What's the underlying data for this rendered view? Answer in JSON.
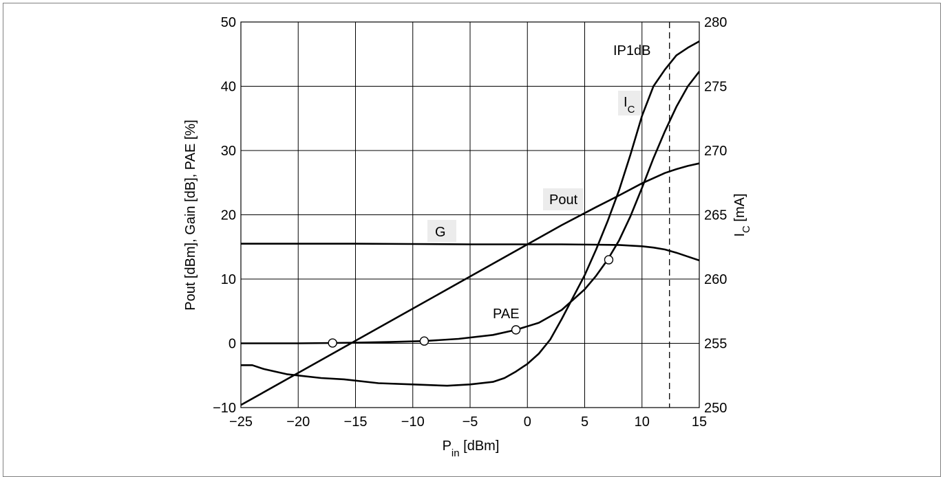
{
  "chart_data": {
    "type": "line",
    "xlabel": {
      "main": "P",
      "sub": "in",
      "unit": " [dBm]"
    },
    "ylabel_left": "Pout [dBm], Gain [dB], PAE [%]",
    "ylabel_right": {
      "main": "I",
      "sub": "C",
      "unit": " [mA]"
    },
    "xlim": [
      -25,
      15
    ],
    "ylim_left": [
      -10,
      50
    ],
    "ylim_right": [
      250,
      280
    ],
    "grid": true,
    "xticks": [
      -25,
      -20,
      -15,
      -10,
      -5,
      0,
      5,
      10,
      15
    ],
    "yticks_left": [
      -10,
      0,
      10,
      20,
      30,
      40,
      50
    ],
    "yticks_right": [
      250,
      255,
      260,
      265,
      270,
      275,
      280
    ],
    "xtick_labels": [
      "−25",
      "−20",
      "−15",
      "−10",
      "−5",
      "0",
      "5",
      "10",
      "15"
    ],
    "ytick_left_labels": [
      "−10",
      "0",
      "10",
      "20",
      "30",
      "40",
      "50"
    ],
    "ytick_right_labels": [
      "250",
      "255",
      "260",
      "265",
      "270",
      "275",
      "280"
    ],
    "series": [
      {
        "key": "pout",
        "axis": "left",
        "x": [
          -25,
          -20,
          -15,
          -10,
          -5,
          0,
          3,
          6,
          8,
          10,
          12,
          13,
          14,
          15
        ],
        "y": [
          -9.6,
          -4.6,
          0.4,
          5.4,
          10.4,
          15.4,
          18.4,
          21.2,
          23.0,
          24.9,
          26.5,
          27.1,
          27.6,
          28.0
        ]
      },
      {
        "key": "gain",
        "axis": "left",
        "x": [
          -25,
          -20,
          -15,
          -10,
          -5,
          0,
          3,
          6,
          8,
          10,
          11,
          12,
          13,
          14,
          15
        ],
        "y": [
          15.5,
          15.5,
          15.5,
          15.45,
          15.4,
          15.4,
          15.4,
          15.35,
          15.3,
          15.1,
          14.9,
          14.6,
          14.1,
          13.5,
          12.9
        ]
      },
      {
        "key": "pae",
        "axis": "left",
        "x": [
          -25,
          -20,
          -17,
          -15,
          -12,
          -9,
          -6,
          -3,
          -1,
          1,
          3,
          5,
          6,
          7,
          8,
          9,
          10,
          11,
          12,
          13,
          14,
          15
        ],
        "y": [
          0,
          0,
          0.05,
          0.1,
          0.2,
          0.35,
          0.7,
          1.3,
          2.1,
          3.2,
          5.2,
          8.4,
          10.5,
          13.0,
          16.0,
          19.8,
          24.2,
          28.8,
          33.0,
          36.8,
          40.0,
          42.3
        ]
      },
      {
        "key": "ic",
        "axis": "right",
        "x": [
          -25,
          -24,
          -23,
          -22,
          -21,
          -20,
          -18,
          -16,
          -13,
          -10,
          -7,
          -5,
          -3,
          -2,
          -1,
          0,
          1,
          2,
          3,
          4,
          5,
          6,
          7,
          8,
          9,
          10,
          11,
          12,
          13,
          14,
          15
        ],
        "y": [
          253.3,
          253.3,
          253.0,
          252.8,
          252.6,
          252.5,
          252.3,
          252.2,
          251.9,
          251.8,
          251.7,
          251.8,
          252.0,
          252.3,
          252.8,
          253.4,
          254.2,
          255.3,
          256.9,
          258.6,
          260.3,
          262.3,
          264.5,
          266.9,
          269.7,
          272.7,
          275.0,
          276.3,
          277.4,
          278.0,
          278.5
        ]
      }
    ],
    "markers_pae": {
      "x": [
        -17,
        -9,
        -1,
        7.1
      ],
      "y": [
        0.05,
        0.35,
        2.1,
        13.0
      ]
    },
    "vline_x": 12.4,
    "annotations": [
      {
        "key": "ip1db",
        "text": "IP1dB"
      },
      {
        "key": "ic",
        "text": "I",
        "sub": "C"
      },
      {
        "key": "pout",
        "text": "Pout"
      },
      {
        "key": "g",
        "text": "G"
      },
      {
        "key": "pae",
        "text": "PAE"
      }
    ]
  }
}
